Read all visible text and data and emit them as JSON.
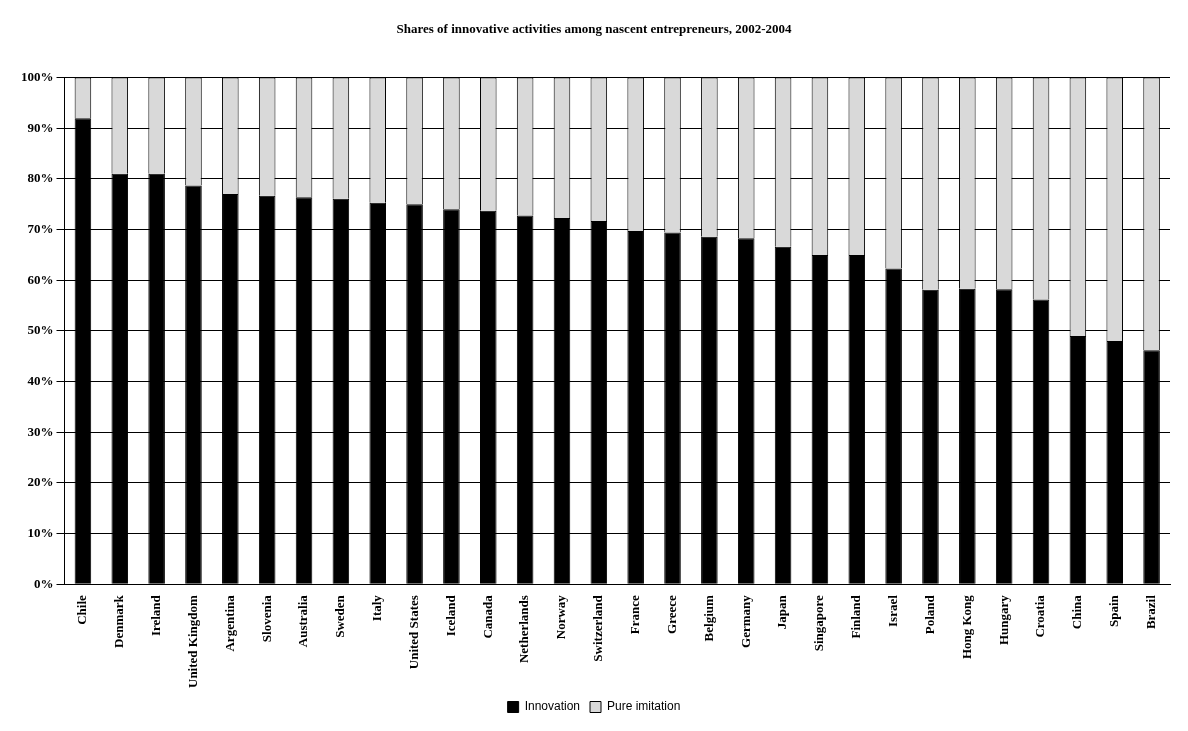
{
  "chart_data": {
    "type": "bar",
    "title": "Shares of innovative activities among nascent entrepreneurs, 2002-2004",
    "stacked": true,
    "grid": "y",
    "legend": "bottom",
    "categories": [
      "Chile",
      "Denmark",
      "Ireland",
      "United Kingdom",
      "Argentina",
      "Slovenia",
      "Australia",
      "Sweden",
      "Italy",
      "United States",
      "Iceland",
      "Canada",
      "Netherlands",
      "Norway",
      "Switzerland",
      "France",
      "Greece",
      "Belgium",
      "Germany",
      "Japan",
      "Singapore",
      "Finland",
      "Israel",
      "Poland",
      "Hong Kong",
      "Hungary",
      "Croatia",
      "China",
      "Spain",
      "Brazil"
    ],
    "series": [
      {
        "name": "Innovation",
        "color": "#000000",
        "values": [
          92,
          81,
          81,
          78.7,
          77,
          76.7,
          76.4,
          76.1,
          75.3,
          75,
          74,
          73.7,
          72.8,
          72.3,
          71.7,
          69.7,
          69.4,
          68.6,
          68.3,
          66.6,
          65,
          65,
          62.3,
          58.1,
          58.3,
          58.2,
          56.2,
          49,
          48,
          46.2
        ]
      },
      {
        "name": "Pure imitation",
        "color": "#d9d9d9",
        "values": [
          8,
          19,
          19,
          21.3,
          23,
          23.3,
          23.6,
          23.9,
          24.7,
          25,
          26,
          26.3,
          27.2,
          27.7,
          28.3,
          30.3,
          30.6,
          31.4,
          31.7,
          33.4,
          35,
          35,
          37.7,
          41.9,
          41.7,
          41.8,
          43.8,
          51,
          52,
          53.8
        ]
      }
    ],
    "ylim": [
      0,
      100
    ],
    "yticks": [
      {
        "value": 0,
        "label": "0%"
      },
      {
        "value": 10,
        "label": "10%"
      },
      {
        "value": 20,
        "label": "20%"
      },
      {
        "value": 30,
        "label": "30%"
      },
      {
        "value": 40,
        "label": "40%"
      },
      {
        "value": 50,
        "label": "50%"
      },
      {
        "value": 60,
        "label": "60%"
      },
      {
        "value": 70,
        "label": "70%"
      },
      {
        "value": 80,
        "label": "80%"
      },
      {
        "value": 90,
        "label": "90%"
      },
      {
        "value": 100,
        "label": "100%"
      }
    ]
  }
}
